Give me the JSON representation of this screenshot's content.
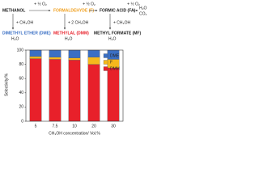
{
  "scheme": {
    "nodes": [
      "METHANOL",
      "FORMALDEHYDE (F)",
      "FORMIC ACID (FA)",
      "H₂O",
      "CO₂",
      "DIMETHYL ETHER (DME)",
      "H₂O",
      "METHYLAL (DMM)",
      "H₂O",
      "METHYL FORMATE (MF)",
      "H₂O"
    ],
    "reagents": [
      "+ ½ O₂",
      "+ ½ O₂",
      "+ ½ O₂",
      "+ CH₃OH",
      "+ 2 CH₃OH",
      "+ CH₃OH"
    ]
  },
  "chart_data": {
    "type": "stacked_bar",
    "x_label": "CH₃OH concentration/ Vol.%",
    "y_label": "Selectivity/%",
    "categories": [
      "5",
      "7.5",
      "10",
      "20",
      "30"
    ],
    "series": [
      {
        "name": "DMM",
        "color": "#e8202a",
        "values": [
          88,
          87,
          86,
          80,
          75
        ]
      },
      {
        "name": "F",
        "color": "#f5b81c",
        "values": [
          3,
          3,
          3,
          10,
          12
        ]
      },
      {
        "name": "DME",
        "color": "#3a6fc4",
        "values": [
          9,
          10,
          11,
          10,
          13
        ]
      }
    ],
    "ylim": [
      0,
      100
    ],
    "yticks": [
      0,
      20,
      40,
      60,
      80,
      100
    ],
    "legend": "upper right"
  }
}
